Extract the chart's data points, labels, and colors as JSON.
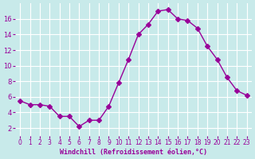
{
  "x": [
    0,
    1,
    2,
    3,
    4,
    5,
    6,
    7,
    8,
    9,
    10,
    11,
    12,
    13,
    14,
    15,
    16,
    17,
    18,
    19,
    20,
    21,
    22,
    23
  ],
  "y": [
    5.5,
    5.0,
    5.0,
    4.8,
    3.5,
    3.5,
    2.2,
    3.0,
    3.0,
    4.8,
    7.8,
    10.8,
    14.0,
    15.3,
    17.0,
    17.2,
    16.0,
    15.8,
    14.8,
    12.5,
    10.8,
    8.5,
    6.8,
    6.2
  ],
  "line_color": "#990099",
  "marker": "D",
  "marker_size": 3,
  "bg_color": "#c8eaea",
  "grid_color": "#ffffff",
  "xlabel": "Windchill (Refroidissement éolien,°C)",
  "xlabel_color": "#990099",
  "tick_color": "#990099",
  "ylim": [
    1,
    18
  ],
  "xlim": [
    -0.5,
    23.5
  ],
  "yticks": [
    2,
    4,
    6,
    8,
    10,
    12,
    14,
    16
  ],
  "xticks": [
    0,
    1,
    2,
    3,
    4,
    5,
    6,
    7,
    8,
    9,
    10,
    11,
    12,
    13,
    14,
    15,
    16,
    17,
    18,
    19,
    20,
    21,
    22,
    23
  ]
}
